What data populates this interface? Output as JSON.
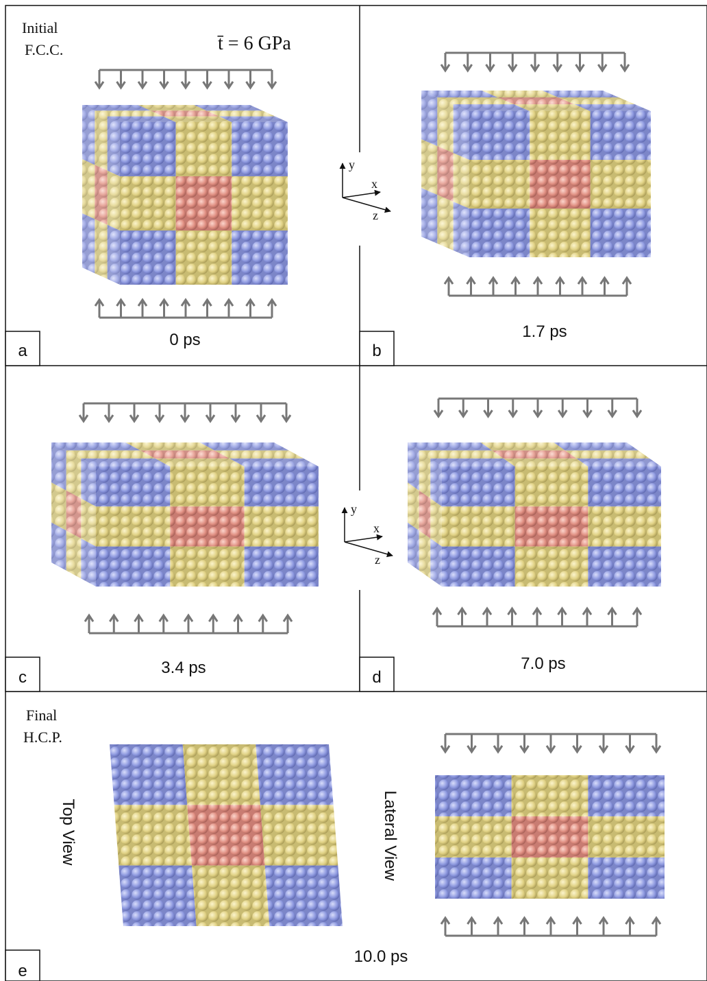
{
  "panels": [
    {
      "letter": "a",
      "time": "0 ps",
      "header": [
        "Initial",
        "F.C.C."
      ],
      "stress": "t̄ = 6 GPa"
    },
    {
      "letter": "b",
      "time": "1.7 ps"
    },
    {
      "letter": "c",
      "time": "3.4 ps"
    },
    {
      "letter": "d",
      "time": "7.0 ps"
    }
  ],
  "axes": [
    {
      "y": "y",
      "x": "x",
      "z": "z"
    },
    {
      "y": "y",
      "x": "x",
      "z": "z"
    }
  ],
  "final": {
    "header": [
      "Final",
      "H.C.P."
    ],
    "top_view": "Top View",
    "lateral_view": "Lateral View",
    "letter": "e",
    "time": "10.0 ps"
  }
}
